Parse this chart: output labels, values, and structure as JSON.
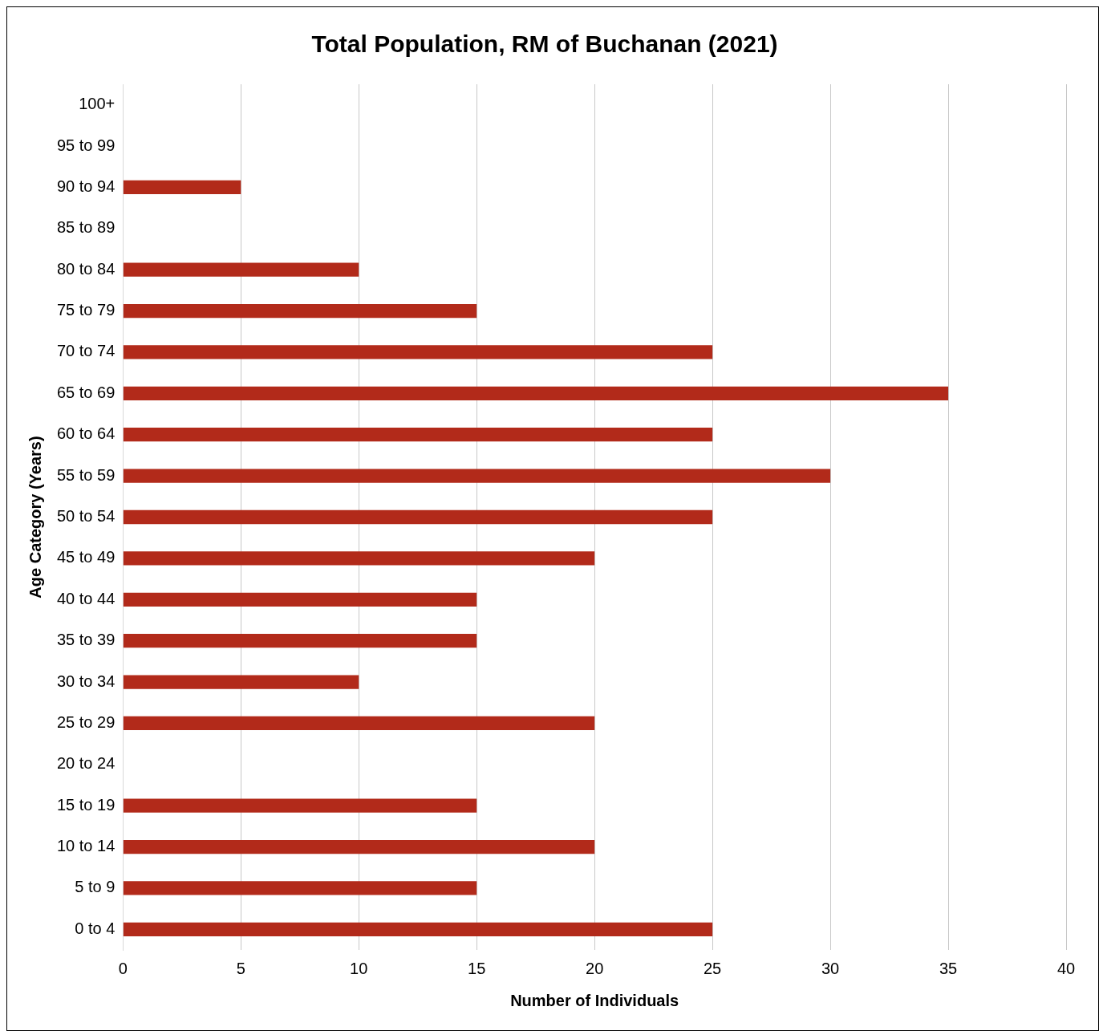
{
  "chart_data": {
    "type": "bar",
    "orientation": "horizontal",
    "title": "Total Population, RM of Buchanan (2021)",
    "xlabel": "Number of Individuals",
    "ylabel": "Age Category (Years)",
    "categories": [
      "100+",
      "95 to 99",
      "90 to 94",
      "85 to 89",
      "80 to 84",
      "75 to 79",
      "70 to 74",
      "65 to 69",
      "60 to 64",
      "55 to 59",
      "50 to 54",
      "45 to 49",
      "40 to 44",
      "35 to 39",
      "30 to 34",
      "25 to 29",
      "20 to 24",
      "15 to 19",
      "10 to 14",
      "5 to 9",
      "0 to 4"
    ],
    "values": [
      0,
      0,
      5,
      0,
      10,
      15,
      25,
      35,
      25,
      30,
      25,
      20,
      15,
      15,
      10,
      20,
      0,
      15,
      20,
      15,
      25
    ],
    "color": "#b22a1a",
    "xlim": [
      0,
      40
    ],
    "xticks": [
      0,
      5,
      10,
      15,
      20,
      25,
      30,
      35,
      40
    ],
    "grid": "x"
  }
}
